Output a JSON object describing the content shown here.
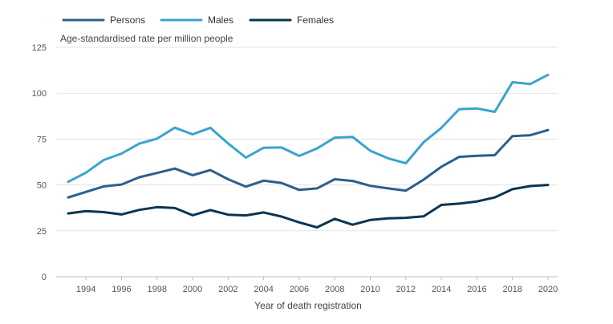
{
  "chart_data": {
    "type": "line",
    "ylabel": "Age-standardised rate per million people",
    "xlabel": "Year of death registration",
    "ylim": [
      0,
      125
    ],
    "yticks": [
      0,
      25,
      50,
      75,
      100,
      125
    ],
    "xlim": [
      1993,
      2020
    ],
    "xticks": [
      1994,
      1996,
      1998,
      2000,
      2002,
      2004,
      2006,
      2008,
      2010,
      2012,
      2014,
      2016,
      2018,
      2020
    ],
    "grid": true,
    "legend_position": "top-left",
    "x": [
      1993,
      1994,
      1995,
      1996,
      1997,
      1998,
      1999,
      2000,
      2001,
      2002,
      2003,
      2004,
      2005,
      2006,
      2007,
      2008,
      2009,
      2010,
      2011,
      2012,
      2013,
      2014,
      2015,
      2016,
      2017,
      2018,
      2019,
      2020
    ],
    "series": [
      {
        "name": "Persons",
        "color": "#2a5f8f",
        "values": [
          43.2,
          46.2,
          49.2,
          50.2,
          54.2,
          56.5,
          58.9,
          55.3,
          58.1,
          53.1,
          49.1,
          52.3,
          51.1,
          47.3,
          48.1,
          53.1,
          52.2,
          49.5,
          48.1,
          46.9,
          52.9,
          59.9,
          65.3,
          65.9,
          66.2,
          76.6,
          77.1,
          79.9
        ]
      },
      {
        "name": "Males",
        "color": "#3aa3cf",
        "values": [
          51.7,
          56.7,
          63.6,
          67.1,
          72.5,
          75.2,
          81.2,
          77.6,
          81.1,
          72.6,
          64.9,
          70.3,
          70.4,
          65.8,
          69.9,
          75.8,
          76.2,
          68.6,
          64.5,
          61.8,
          73.3,
          81.1,
          91.3,
          91.7,
          89.8,
          106.0,
          105.0,
          110.0
        ]
      },
      {
        "name": "Females",
        "color": "#0b3552",
        "values": [
          34.5,
          35.7,
          35.2,
          33.9,
          36.4,
          37.9,
          37.4,
          33.5,
          36.3,
          33.8,
          33.4,
          35.0,
          32.8,
          29.6,
          26.9,
          31.5,
          28.3,
          30.9,
          31.8,
          32.1,
          32.9,
          39.1,
          39.8,
          41.0,
          43.2,
          47.7,
          49.4,
          50.0
        ]
      }
    ]
  }
}
